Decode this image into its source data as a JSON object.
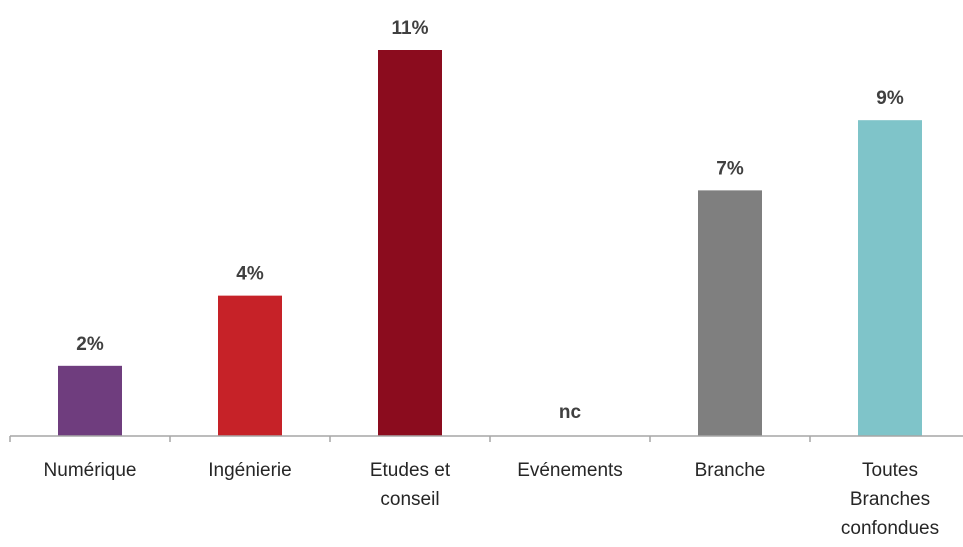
{
  "chart_data": {
    "type": "bar",
    "categories": [
      [
        "Numérique"
      ],
      [
        "Ingénierie"
      ],
      [
        "Etudes et",
        "conseil"
      ],
      [
        "Evénements"
      ],
      [
        "Branche"
      ],
      [
        "Toutes",
        "Branches",
        "confondues"
      ]
    ],
    "values": [
      2,
      4,
      11,
      null,
      7,
      9
    ],
    "data_labels": [
      "2%",
      "4%",
      "11%",
      "nc",
      "7%",
      "9%"
    ],
    "bar_colors": [
      "#6f3d7e",
      "#c62228",
      "#8b0c1e",
      "#ffffff",
      "#7f7f7f",
      "#7fc4c9"
    ],
    "unit": "%",
    "ylim": [
      0,
      11
    ],
    "grid": false,
    "legend": "none"
  }
}
